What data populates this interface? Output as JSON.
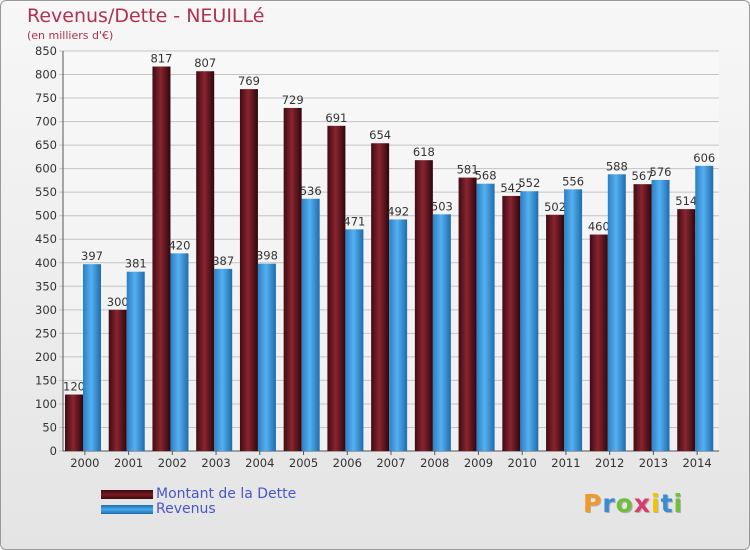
{
  "chart_data": {
    "type": "bar",
    "title": "Revenus/Dette - NEUILLé",
    "subtitle": "(en milliers d'€)",
    "categories": [
      "2000",
      "2001",
      "2002",
      "2003",
      "2004",
      "2005",
      "2006",
      "2007",
      "2008",
      "2009",
      "2010",
      "2011",
      "2012",
      "2013",
      "2014"
    ],
    "series": [
      {
        "name": "Montant de la Dette",
        "color": "#7a1a24",
        "values": [
          120,
          300,
          817,
          807,
          769,
          729,
          691,
          654,
          618,
          581,
          542,
          502,
          460,
          567,
          514
        ]
      },
      {
        "name": "Revenus",
        "color": "#3d9be0",
        "values": [
          397,
          381,
          420,
          387,
          398,
          536,
          471,
          492,
          503,
          568,
          552,
          556,
          588,
          576,
          606
        ]
      }
    ],
    "ylim": [
      0,
      850
    ],
    "ytick_step": 50,
    "grid": true,
    "legend_position": "bottom-left"
  },
  "logo": {
    "letters": [
      "P",
      "r",
      "o",
      "x",
      "i",
      "t",
      "i"
    ],
    "colors": [
      "#f19a2c",
      "#3a8ad6",
      "#6fbf3c",
      "#d93b6e",
      "#f2c400",
      "#3a8ad6",
      "#6fbf3c"
    ]
  }
}
